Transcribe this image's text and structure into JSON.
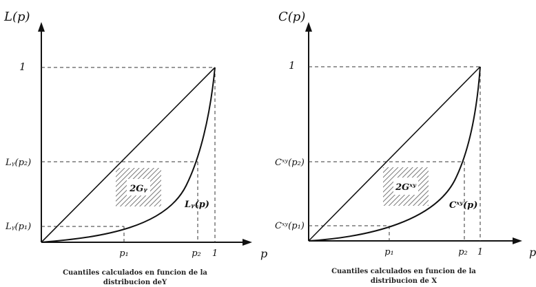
{
  "panels": [
    {
      "y_axis_label": "L(p)",
      "x_axis_label": "p",
      "one_label_y": "1",
      "one_label_x": "1",
      "p1_label": "p₁",
      "p2_label": "p₂",
      "y_tick_p2": "Lᵧ(p₂)",
      "y_tick_p1": "Lᵧ(p₁)",
      "area_label": "2Gᵧ",
      "curve_label": "Lᵧ(p)",
      "caption_line1": "Cuantiles calculados en funcion de la",
      "caption_line2": "distribucion deY"
    },
    {
      "y_axis_label": "C(p)",
      "x_axis_label": "p",
      "one_label_y": "1",
      "one_label_x": "1",
      "p1_label": "p₁",
      "p2_label": "p₂",
      "y_tick_p2": "Cˣʸ(p₂)",
      "y_tick_p1": "Cˣʸ(p₁)",
      "area_label": "2Gˣʸ",
      "curve_label": "Cˣʸ(p)",
      "caption_line1": "Cuantiles calculados en funcion de la",
      "caption_line2": "distribucion de X"
    }
  ]
}
